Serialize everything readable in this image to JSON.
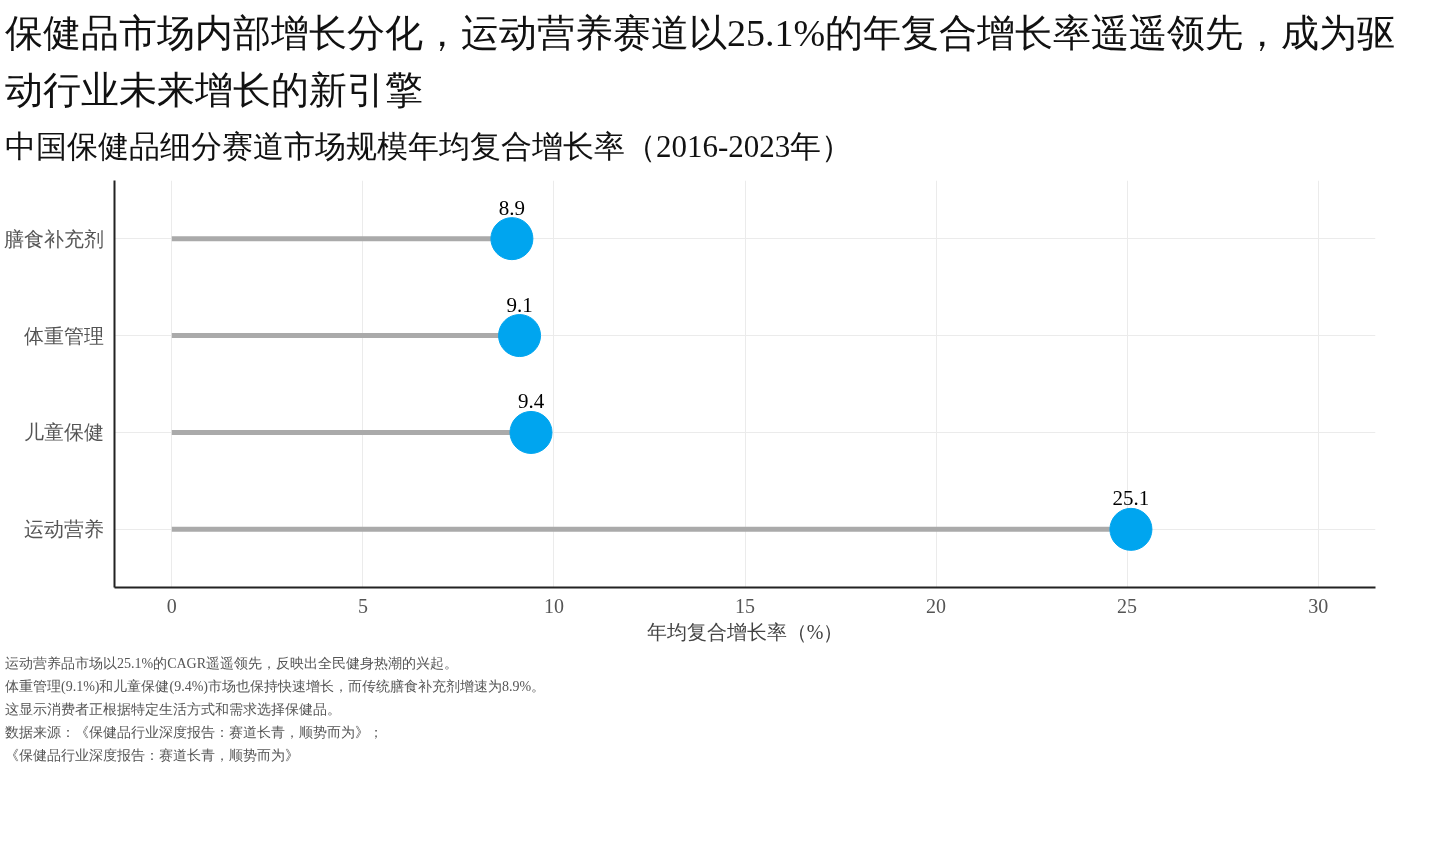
{
  "chart_data": {
    "type": "lollipop",
    "title": "保健品市场内部增长分化，运动营养赛道以25.1%的年复合增长率遥遥领先，成为驱动行业未来增长的新引擎",
    "subtitle": "中国保健品细分赛道市场规模年均复合增长率（2016-2023年）",
    "xlabel": "年均复合增长率（%）",
    "orientation": "horizontal",
    "categories": [
      "膳食补充剂",
      "体重管理",
      "儿童保健",
      "运动营养"
    ],
    "values": [
      8.9,
      9.1,
      9.4,
      25.1
    ],
    "color": "#00a5ef",
    "xlim": [
      -1.5,
      31.5
    ],
    "xticks": [
      0,
      5,
      10,
      15,
      20,
      25,
      30
    ],
    "grid": true,
    "data_labels": true,
    "marker": "circle",
    "annotations": [
      "运动营养品市场以25.1%的CAGR遥遥领先，反映出全民健身热潮的兴起。",
      "体重管理(9.1%)和儿童保健(9.4%)市场也保持快速增长，而传统膳食补充剂增速为8.9%。",
      "这显示消费者正根据特定生活方式和需求选择保健品。",
      "数据来源：《保健品行业深度报告：赛道长青，顺势而为》；",
      "《保健品行业深度报告：赛道长青，顺势而为》"
    ]
  }
}
